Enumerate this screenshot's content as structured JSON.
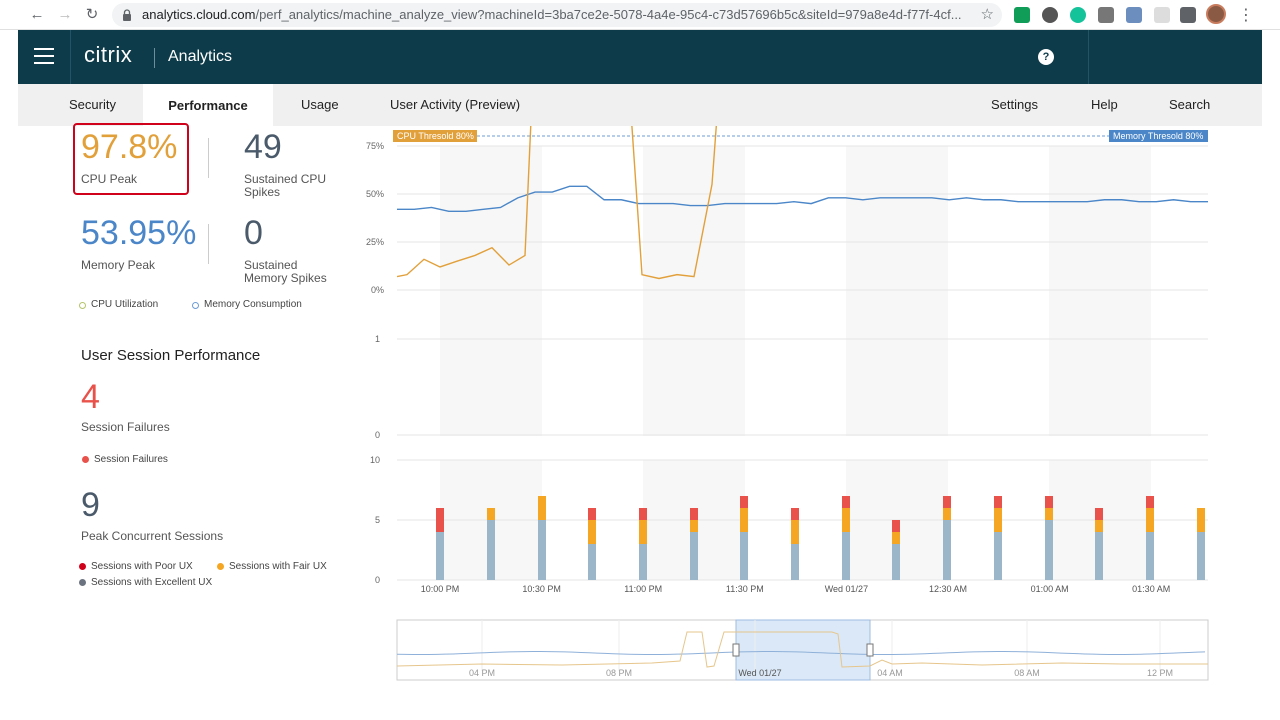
{
  "browser": {
    "url_host": "analytics.cloud.com",
    "url_path": "/perf_analytics/machine_analyze_view?machineId=3ba7ce2e-5078-4a4e-95c4-c73d57696b5c&siteId=979a8e4d-f77f-4cf..."
  },
  "header": {
    "brand": "citrix",
    "product": "Analytics",
    "help_glyph": "?"
  },
  "tabs": {
    "security": "Security",
    "performance": "Performance",
    "usage": "Usage",
    "user_activity": "User Activity (Preview)",
    "settings": "Settings",
    "help": "Help",
    "search": "Search"
  },
  "metrics": {
    "cpu_peak_value": "97.8%",
    "cpu_peak_label": "CPU Peak",
    "sustained_cpu_value": "49",
    "sustained_cpu_label_1": "Sustained CPU",
    "sustained_cpu_label_2": "Spikes",
    "memory_peak_value": "53.95%",
    "memory_peak_label": "Memory Peak",
    "sustained_mem_value": "0",
    "sustained_mem_label_1": "Sustained",
    "sustained_mem_label_2": "Memory Spikes",
    "legend_cpu": "CPU Utilization",
    "legend_memory": "Memory Consumption"
  },
  "sessions": {
    "title": "User Session Performance",
    "failures_value": "4",
    "failures_label": "Session Failures",
    "legend_failures": "Session Failures",
    "peak_value": "9",
    "peak_label": "Peak Concurrent Sessions",
    "legend_poor": "Sessions with Poor UX",
    "legend_fair": "Sessions with Fair UX",
    "legend_excellent": "Sessions with Excellent UX"
  },
  "colors": {
    "cpu": "#e2a03a",
    "memory": "#4a86c8",
    "failure": "#e8524a",
    "poor": "#e8524a",
    "fair": "#f5a623",
    "excellent": "#9bb5c9",
    "header": "#0e3b4a",
    "cpu_peak_border": "#d0021b"
  },
  "chart_data": [
    {
      "type": "line",
      "name": "cpu-memory-chart",
      "yticks": [
        "75%",
        "50%",
        "25%",
        "0%"
      ],
      "ylim": [
        0,
        100
      ],
      "thresholds": [
        {
          "label": "CPU Thresold 80%",
          "value": 80
        },
        {
          "label": "Memory Thresold 80%",
          "value": 80
        }
      ],
      "series": [
        {
          "name": "CPU Utilization",
          "values": [
            7,
            8,
            16,
            12,
            15,
            18,
            22,
            13,
            18,
            100,
            100,
            100,
            100,
            100,
            100,
            8,
            6,
            8,
            7,
            55,
            100
          ]
        },
        {
          "name": "Memory Consumption",
          "values": [
            42,
            42,
            43,
            41,
            41,
            42,
            43,
            48,
            51,
            51,
            54,
            54,
            47,
            47,
            45,
            45,
            45,
            44,
            44,
            45,
            45,
            45,
            45,
            46,
            45,
            48,
            48,
            47,
            48,
            48,
            48,
            48,
            47,
            48,
            47,
            47,
            46,
            46,
            46,
            46,
            46,
            47,
            47,
            46,
            46,
            47,
            46,
            46
          ]
        }
      ]
    },
    {
      "type": "bar",
      "name": "session-failures-chart",
      "yticks": [
        "1",
        "0"
      ],
      "ylim": [
        0,
        1
      ],
      "values": []
    },
    {
      "type": "bar",
      "name": "sessions-chart",
      "yticks": [
        "10",
        "5",
        "0"
      ],
      "ylim": [
        0,
        10
      ],
      "x_labels": [
        "10:00 PM",
        "10:30 PM",
        "11:00 PM",
        "11:30 PM",
        "Wed 01/27",
        "12:30 AM",
        "01:00 AM",
        "01:30 AM"
      ],
      "series": [
        {
          "name": "Sessions with Excellent UX",
          "values": [
            4,
            5,
            5,
            3,
            3,
            4,
            4,
            3,
            4,
            3,
            5,
            4,
            5,
            4,
            4,
            4
          ]
        },
        {
          "name": "Sessions with Fair UX",
          "values": [
            0,
            1,
            2,
            2,
            2,
            1,
            2,
            2,
            2,
            1,
            1,
            2,
            1,
            1,
            2,
            2
          ]
        },
        {
          "name": "Sessions with Poor UX",
          "values": [
            2,
            0,
            0,
            1,
            1,
            1,
            1,
            1,
            1,
            1,
            1,
            1,
            1,
            1,
            1,
            0
          ]
        }
      ]
    },
    {
      "type": "line",
      "name": "timeline-navigator",
      "x_labels": [
        "04 PM",
        "08 PM",
        "Wed 01/27",
        "04 AM",
        "08 AM",
        "12 PM"
      ]
    }
  ]
}
